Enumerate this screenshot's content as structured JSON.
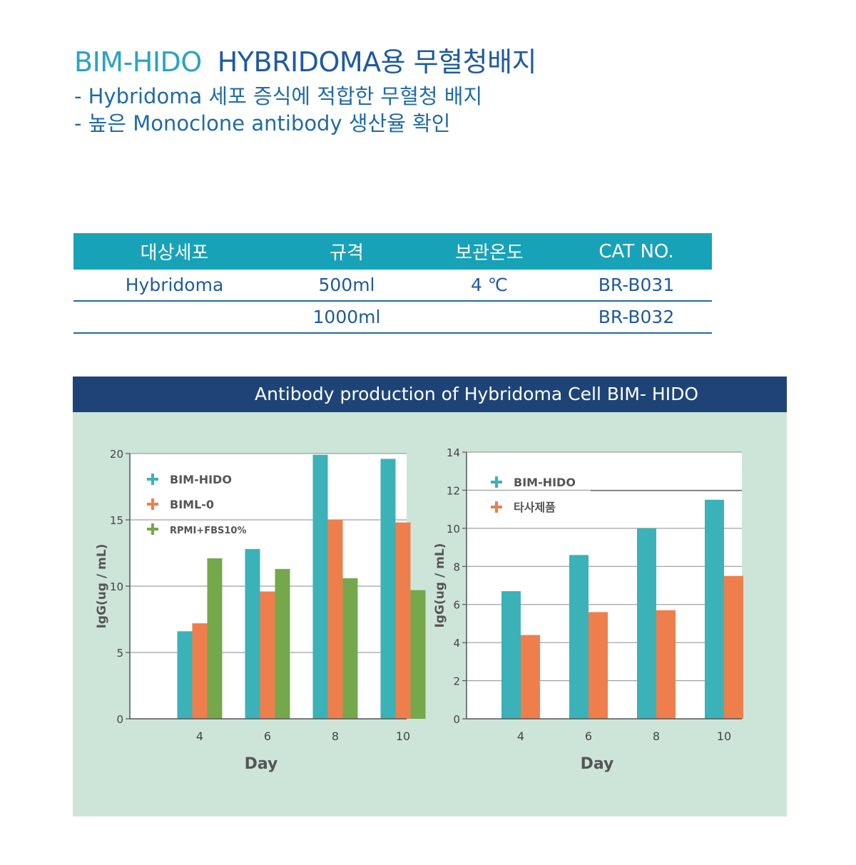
{
  "header": {
    "brand": "BIM-HIDO",
    "title": "HYBRIDOMA용 무혈청배지"
  },
  "bullets": [
    "- Hybridoma 세포 증식에 적합한 무혈청 배지",
    "- 높은 Monoclone antibody 생산율 확인"
  ],
  "spec_table": {
    "headers": [
      "대상세포",
      "규격",
      "보관온도",
      "CAT NO."
    ],
    "rows": [
      [
        "Hybridoma",
        "500ml",
        "4 ℃",
        "BR-B031"
      ],
      [
        "",
        "1000ml",
        "",
        "BR-B032"
      ]
    ]
  },
  "panel_title": "Antibody production of Hybridoma Cell BIM- HIDO",
  "colors": {
    "teal": "#3bb2b8",
    "orange": "#ee7e4c",
    "green": "#74a84b"
  },
  "chart_data": [
    {
      "type": "bar",
      "categories": [
        "4",
        "6",
        "8",
        "10"
      ],
      "series": [
        {
          "name": "BIM-HIDO",
          "values": [
            6.6,
            12.8,
            19.9,
            19.6
          ],
          "color": "#3bb2b8"
        },
        {
          "name": "BIML-0",
          "values": [
            7.2,
            9.6,
            15.0,
            14.8
          ],
          "color": "#ee7e4c"
        },
        {
          "name": "RPMI+FBS10%",
          "values": [
            12.1,
            11.3,
            10.6,
            9.7
          ],
          "color": "#74a84b"
        }
      ],
      "xlabel": "Day",
      "ylabel": "IgG(ug / mL)",
      "ylim": [
        0,
        20
      ],
      "yticks": [
        0,
        5,
        10,
        15,
        20
      ],
      "legend": "top-left",
      "grid": true
    },
    {
      "type": "bar",
      "categories": [
        "4",
        "6",
        "8",
        "10"
      ],
      "series": [
        {
          "name": "BIM-HIDO",
          "values": [
            6.7,
            8.6,
            10.0,
            11.5
          ],
          "color": "#3bb2b8"
        },
        {
          "name": "타사제품",
          "values": [
            4.4,
            5.6,
            5.7,
            7.5
          ],
          "color": "#ee7e4c"
        }
      ],
      "xlabel": "Day",
      "ylabel": "IgG(ug / mL)",
      "ylim": [
        0,
        14
      ],
      "yticks": [
        0,
        2,
        4,
        6,
        8,
        10,
        12,
        14
      ],
      "legend": "top-left",
      "grid": true
    }
  ]
}
